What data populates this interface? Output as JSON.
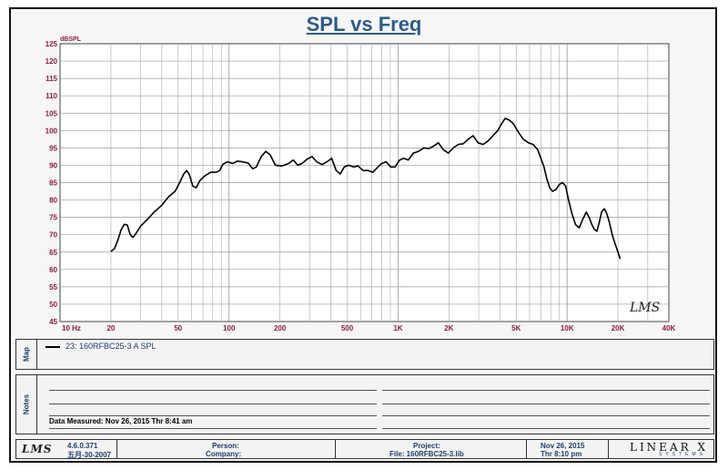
{
  "chart_data": {
    "type": "line",
    "title": "SPL vs Freq",
    "ylabel": "dBSPL",
    "x_scale": "log",
    "xlim": [
      10,
      40000
    ],
    "ylim": [
      45,
      125
    ],
    "grid": true,
    "x_ticks": [
      10,
      20,
      50,
      100,
      200,
      500,
      1000,
      2000,
      5000,
      10000,
      20000,
      40000
    ],
    "x_tick_labels": [
      "10  Hz",
      "20",
      "50",
      "100",
      "200",
      "500",
      "1K",
      "2K",
      "5K",
      "10K",
      "20K",
      "40K"
    ],
    "y_ticks": [
      45,
      50,
      55,
      60,
      65,
      70,
      75,
      80,
      85,
      90,
      95,
      100,
      105,
      110,
      115,
      120,
      125
    ],
    "series": [
      {
        "name": "23: 160RFBC25-3   A  SPL",
        "color": "#000000",
        "points": [
          [
            20,
            65.2
          ],
          [
            21,
            66.0
          ],
          [
            22,
            68.5
          ],
          [
            23,
            71.5
          ],
          [
            24,
            73.0
          ],
          [
            25,
            72.8
          ],
          [
            26,
            70.0
          ],
          [
            27,
            69.2
          ],
          [
            28,
            70.2
          ],
          [
            30,
            72.5
          ],
          [
            33,
            74.5
          ],
          [
            36,
            76.5
          ],
          [
            40,
            78.5
          ],
          [
            44,
            81.0
          ],
          [
            48,
            82.5
          ],
          [
            51,
            85.0
          ],
          [
            54,
            87.5
          ],
          [
            56,
            88.5
          ],
          [
            58,
            87.5
          ],
          [
            61,
            84.0
          ],
          [
            64,
            83.5
          ],
          [
            67,
            85.5
          ],
          [
            72,
            87.0
          ],
          [
            78,
            88.0
          ],
          [
            84,
            88.0
          ],
          [
            88,
            88.5
          ],
          [
            92,
            90.3
          ],
          [
            98,
            91.0
          ],
          [
            105,
            90.5
          ],
          [
            112,
            91.2
          ],
          [
            120,
            91.0
          ],
          [
            130,
            90.6
          ],
          [
            138,
            89.0
          ],
          [
            145,
            89.5
          ],
          [
            155,
            92.5
          ],
          [
            165,
            94.0
          ],
          [
            175,
            93.0
          ],
          [
            188,
            90.0
          ],
          [
            205,
            89.8
          ],
          [
            225,
            90.5
          ],
          [
            240,
            91.5
          ],
          [
            255,
            90.0
          ],
          [
            270,
            90.5
          ],
          [
            290,
            91.8
          ],
          [
            310,
            92.5
          ],
          [
            330,
            91.0
          ],
          [
            355,
            90.2
          ],
          [
            380,
            91.0
          ],
          [
            405,
            92.0
          ],
          [
            430,
            88.5
          ],
          [
            455,
            87.5
          ],
          [
            480,
            89.5
          ],
          [
            510,
            90.0
          ],
          [
            545,
            89.5
          ],
          [
            580,
            89.8
          ],
          [
            620,
            88.5
          ],
          [
            665,
            88.5
          ],
          [
            710,
            88.0
          ],
          [
            760,
            89.5
          ],
          [
            800,
            90.5
          ],
          [
            850,
            91.0
          ],
          [
            905,
            89.5
          ],
          [
            960,
            89.5
          ],
          [
            1020,
            91.5
          ],
          [
            1080,
            92.0
          ],
          [
            1150,
            91.5
          ],
          [
            1230,
            93.5
          ],
          [
            1320,
            94.0
          ],
          [
            1420,
            95.0
          ],
          [
            1520,
            94.8
          ],
          [
            1620,
            95.5
          ],
          [
            1730,
            96.5
          ],
          [
            1850,
            94.5
          ],
          [
            1980,
            93.5
          ],
          [
            2120,
            95.0
          ],
          [
            2270,
            96.0
          ],
          [
            2430,
            96.2
          ],
          [
            2600,
            97.5
          ],
          [
            2780,
            98.5
          ],
          [
            2970,
            96.5
          ],
          [
            3180,
            96.0
          ],
          [
            3400,
            97.0
          ],
          [
            3640,
            98.5
          ],
          [
            3890,
            100.0
          ],
          [
            4100,
            102.0
          ],
          [
            4300,
            103.5
          ],
          [
            4550,
            103.0
          ],
          [
            4800,
            102.0
          ],
          [
            5150,
            99.5
          ],
          [
            5500,
            97.5
          ],
          [
            5900,
            96.5
          ],
          [
            6300,
            96.0
          ],
          [
            6700,
            94.5
          ],
          [
            7000,
            92.0
          ],
          [
            7300,
            89.5
          ],
          [
            7600,
            86.0
          ],
          [
            7900,
            83.5
          ],
          [
            8200,
            82.5
          ],
          [
            8600,
            83.0
          ],
          [
            9000,
            84.5
          ],
          [
            9400,
            85.0
          ],
          [
            9800,
            84.0
          ],
          [
            10200,
            80.0
          ],
          [
            10700,
            76.0
          ],
          [
            11200,
            73.0
          ],
          [
            11800,
            72.0
          ],
          [
            12400,
            74.5
          ],
          [
            13000,
            76.5
          ],
          [
            13500,
            75.0
          ],
          [
            14000,
            73.0
          ],
          [
            14500,
            71.5
          ],
          [
            15000,
            71.0
          ],
          [
            15500,
            73.5
          ],
          [
            16000,
            76.5
          ],
          [
            16600,
            77.5
          ],
          [
            17200,
            76.0
          ],
          [
            17800,
            73.5
          ],
          [
            18500,
            70.0
          ],
          [
            19200,
            67.5
          ],
          [
            20000,
            65.0
          ],
          [
            20600,
            63.0
          ]
        ]
      }
    ]
  },
  "watermark": "LMS",
  "map_panel": {
    "side_label": "Map",
    "legend_entry": "23: 160RFBC25-3   A  SPL"
  },
  "notes_panel": {
    "side_label": "Notes",
    "measured": "Data Measured: Nov 26, 2015  Thr  8:41 am"
  },
  "footer": {
    "logo": "LMS",
    "version": "4.6.0.371",
    "build_date": "五月-30-2007",
    "person_label": "Person:",
    "company_label": "Company:",
    "project_label": "Project:",
    "file_label": "File: 160RFBC25-3.lib",
    "date": "Nov 26, 2015",
    "time": "Thr  8:10 pm",
    "brand": "LINEAR X",
    "brand_sub": "SYSTEMS"
  },
  "colors": {
    "title": "#2e5a8a",
    "tick_labels": "#8b1d3c",
    "text": "#1f3f6a",
    "grid": "#999999"
  }
}
